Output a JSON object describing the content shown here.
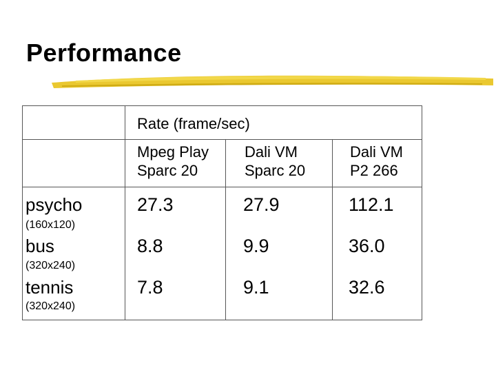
{
  "slide": {
    "title": "Performance"
  },
  "table": {
    "group_header": "Rate (frame/sec)",
    "columns": [
      {
        "line1": "Mpeg Play",
        "line2": "Sparc 20"
      },
      {
        "line1": "Dali VM",
        "line2": "Sparc 20"
      },
      {
        "line1": "Dali VM",
        "line2": "P2 266"
      }
    ],
    "rows": [
      {
        "name": "psycho",
        "size": "(160x120)",
        "values": [
          "27.3",
          "27.9",
          "112.1"
        ]
      },
      {
        "name": "bus",
        "size": "(320x240)",
        "values": [
          "8.8",
          "9.9",
          "36.0"
        ]
      },
      {
        "name": "tennis",
        "size": "(320x240)",
        "values": [
          "7.8",
          "9.1",
          "32.6"
        ]
      }
    ]
  }
}
